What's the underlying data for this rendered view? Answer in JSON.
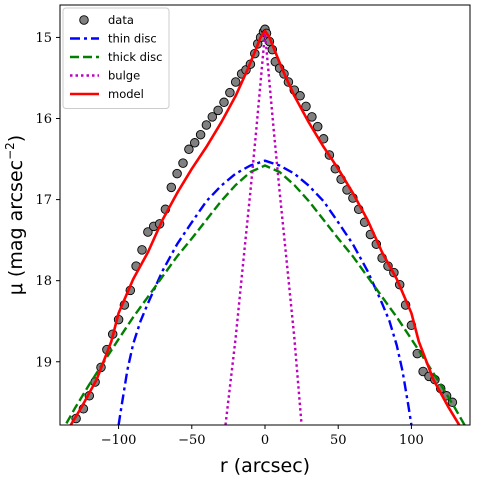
{
  "chart_data": {
    "type": "line",
    "xlabel": "r (arcsec)",
    "ylabel": "μ (mag arcsec",
    "ylabel_sup": "−2",
    "ylabel_close": ")",
    "xlim": [
      -140,
      140
    ],
    "ylim": [
      19.78,
      14.6
    ],
    "y_inverted": true,
    "grid": false,
    "legend_position": "upper-left",
    "x_ticks": [
      -100,
      -50,
      0,
      50,
      100
    ],
    "x_tick_labels": [
      "−100",
      "−50",
      "0",
      "50",
      "100"
    ],
    "y_ticks": [
      15,
      16,
      17,
      18,
      19
    ],
    "y_tick_labels": [
      "15",
      "16",
      "17",
      "18",
      "19"
    ],
    "series": [
      {
        "name": "data",
        "style": "markers",
        "color": "#808080",
        "edge": "#000000",
        "x": [
          -129,
          -124,
          -120,
          -116,
          -112,
          -108,
          -104,
          -100,
          -96,
          -92,
          -88,
          -84,
          -80,
          -76,
          -72,
          -68,
          -64,
          -60,
          -56,
          -52,
          -48,
          -44,
          -40,
          -36,
          -32,
          -28,
          -24,
          -20,
          -16,
          -13,
          -10,
          -7,
          -5,
          -3,
          -1,
          0,
          1,
          3,
          5,
          7,
          10,
          13,
          16,
          20,
          24,
          28,
          32,
          36,
          40,
          44,
          48,
          52,
          56,
          60,
          64,
          68,
          72,
          76,
          80,
          84,
          88,
          92,
          96,
          100,
          104,
          108,
          112,
          116,
          120,
          124,
          128
        ],
        "y": [
          19.7,
          19.58,
          19.42,
          19.25,
          19.07,
          18.85,
          18.66,
          18.48,
          18.3,
          18.12,
          17.82,
          17.62,
          17.4,
          17.33,
          17.3,
          17.12,
          16.85,
          16.68,
          16.55,
          16.38,
          16.3,
          16.2,
          16.08,
          15.98,
          15.9,
          15.8,
          15.68,
          15.55,
          15.45,
          15.4,
          15.33,
          15.2,
          15.08,
          15.0,
          14.93,
          14.9,
          14.95,
          15.05,
          15.15,
          15.3,
          15.38,
          15.45,
          15.55,
          15.65,
          15.72,
          15.85,
          15.98,
          16.1,
          16.25,
          16.45,
          16.62,
          16.75,
          16.88,
          16.98,
          17.12,
          17.28,
          17.43,
          17.55,
          17.72,
          17.82,
          17.9,
          18.05,
          18.3,
          18.55,
          18.9,
          19.12,
          19.18,
          19.22,
          19.33,
          19.42,
          19.5
        ]
      },
      {
        "name": "thin disc",
        "style": "dashdot",
        "color": "#0000ff",
        "x": [
          -100,
          -98,
          -94,
          -90,
          -85,
          -80,
          -70,
          -60,
          -50,
          -40,
          -30,
          -20,
          -10,
          0,
          10,
          20,
          30,
          40,
          50,
          60,
          70,
          80,
          85,
          90,
          94,
          98,
          100
        ],
        "y": [
          19.78,
          19.55,
          19.1,
          18.78,
          18.5,
          18.28,
          17.88,
          17.55,
          17.28,
          17.02,
          16.83,
          16.68,
          16.58,
          16.52,
          16.58,
          16.68,
          16.83,
          17.02,
          17.28,
          17.55,
          17.88,
          18.28,
          18.5,
          18.8,
          19.12,
          19.55,
          19.78
        ]
      },
      {
        "name": "thick disc",
        "style": "dashed",
        "color": "#008000",
        "x": [
          -140,
          -130,
          -120,
          -110,
          -100,
          -90,
          -80,
          -70,
          -60,
          -50,
          -40,
          -30,
          -20,
          -10,
          0,
          10,
          20,
          30,
          40,
          50,
          60,
          70,
          80,
          90,
          100,
          110,
          120,
          130,
          140
        ],
        "y": [
          19.9,
          19.58,
          19.28,
          19.0,
          18.72,
          18.45,
          18.2,
          17.95,
          17.7,
          17.48,
          17.25,
          17.02,
          16.82,
          16.66,
          16.58,
          16.66,
          16.82,
          17.02,
          17.25,
          17.48,
          17.7,
          17.95,
          18.2,
          18.45,
          18.72,
          19.0,
          19.28,
          19.58,
          19.9
        ]
      },
      {
        "name": "bulge",
        "style": "dotted",
        "color": "#bf00bf",
        "x": [
          -27,
          -20,
          -15,
          -10,
          -6,
          -3,
          -1,
          0,
          1,
          3,
          6,
          10,
          15,
          20,
          25
        ],
        "y": [
          19.78,
          18.7,
          17.8,
          16.9,
          16.15,
          15.55,
          15.15,
          14.95,
          15.15,
          15.55,
          16.15,
          16.9,
          17.8,
          18.7,
          19.78
        ]
      },
      {
        "name": "model",
        "style": "solid",
        "color": "#ff0000",
        "x": [
          -135,
          -125,
          -115,
          -105,
          -100,
          -90,
          -80,
          -70,
          -60,
          -50,
          -40,
          -30,
          -20,
          -12,
          -7,
          -3,
          0,
          3,
          7,
          12,
          20,
          30,
          40,
          50,
          60,
          70,
          80,
          90,
          100,
          105,
          115,
          125,
          135
        ],
        "y": [
          19.85,
          19.55,
          19.22,
          18.75,
          18.4,
          17.98,
          17.65,
          17.25,
          16.92,
          16.62,
          16.35,
          16.05,
          15.72,
          15.4,
          15.18,
          15.0,
          14.92,
          15.0,
          15.18,
          15.4,
          15.72,
          16.05,
          16.35,
          16.62,
          16.92,
          17.25,
          17.65,
          17.98,
          18.4,
          18.75,
          19.22,
          19.55,
          19.85
        ]
      }
    ]
  }
}
